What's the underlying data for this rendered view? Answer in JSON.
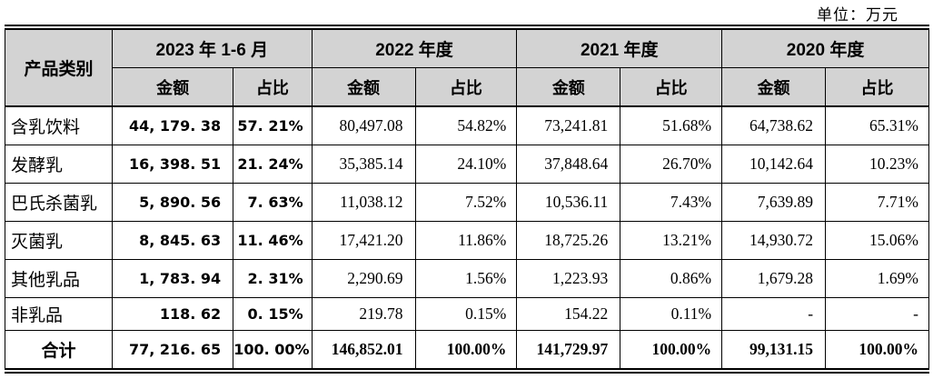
{
  "unit_label": "单位：万元",
  "table": {
    "corner_header": "产品类别",
    "period_headers": [
      "2023 年 1-6 月",
      "2022 年度",
      "2021 年度",
      "2020 年度"
    ],
    "sub_headers": {
      "amount": "金额",
      "ratio": "占比"
    },
    "rows": [
      {
        "category": "含乳饮料",
        "cells": [
          "44, 179. 38",
          "57. 21%",
          "80,497.08",
          "54.82%",
          "73,241.81",
          "51.68%",
          "64,738.62",
          "65.31%"
        ]
      },
      {
        "category": "发酵乳",
        "cells": [
          "16, 398. 51",
          "21. 24%",
          "35,385.14",
          "24.10%",
          "37,848.64",
          "26.70%",
          "10,142.64",
          "10.23%"
        ]
      },
      {
        "category": "巴氏杀菌乳",
        "cells": [
          "5, 890. 56",
          "7. 63%",
          "11,038.12",
          "7.52%",
          "10,536.11",
          "7.43%",
          "7,639.89",
          "7.71%"
        ]
      },
      {
        "category": "灭菌乳",
        "cells": [
          "8, 845. 63",
          "11. 46%",
          "17,421.20",
          "11.86%",
          "18,725.26",
          "13.21%",
          "14,930.72",
          "15.06%"
        ]
      },
      {
        "category": "其他乳品",
        "cells": [
          "1, 783. 94",
          "2. 31%",
          "2,290.69",
          "1.56%",
          "1,223.93",
          "0.86%",
          "1,679.28",
          "1.69%"
        ]
      },
      {
        "category": "非乳品",
        "cells": [
          "118. 62",
          "0. 15%",
          "219.78",
          "0.15%",
          "154.22",
          "0.11%",
          "-",
          "-"
        ]
      }
    ],
    "total_row": {
      "category": "合计",
      "cells": [
        "77, 216. 65",
        "100. 00%",
        "146,852.01",
        "100.00%",
        "141,729.97",
        "100.00%",
        "99,131.15",
        "100.00%"
      ]
    }
  },
  "colors": {
    "header_bg": "#d3d3d3",
    "border": "#000000",
    "text": "#000000"
  }
}
